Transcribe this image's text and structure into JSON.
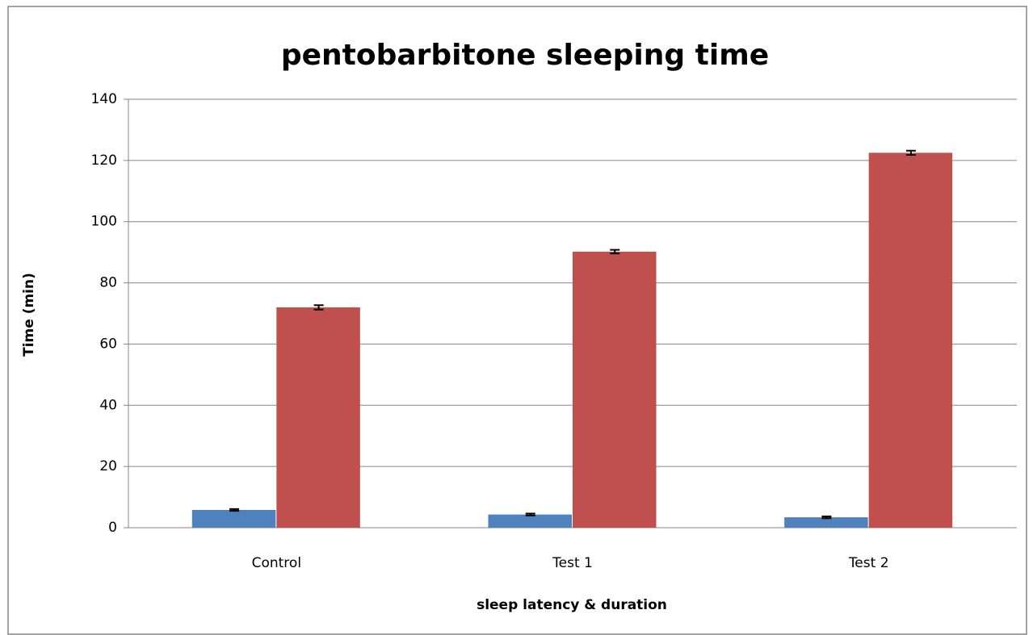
{
  "chart_data": {
    "type": "bar",
    "title": "pentobarbitone sleeping time",
    "x_label": "sleep latency & duration",
    "y_label": "Time (min)",
    "categories": [
      "Control",
      "Test 1",
      "Test 2"
    ],
    "series": [
      {
        "color": "#4f81bd",
        "values": [
          5.8,
          4.3,
          3.4
        ],
        "errors": [
          0.3,
          0.3,
          0.3
        ]
      },
      {
        "color": "#c0504d",
        "values": [
          72,
          90.2,
          122.5
        ],
        "errors": [
          0.7,
          0.6,
          0.7
        ]
      }
    ],
    "ylim": [
      0,
      140
    ],
    "yticks": [
      0,
      20,
      40,
      60,
      80,
      100,
      120,
      140
    ],
    "grid": true
  }
}
